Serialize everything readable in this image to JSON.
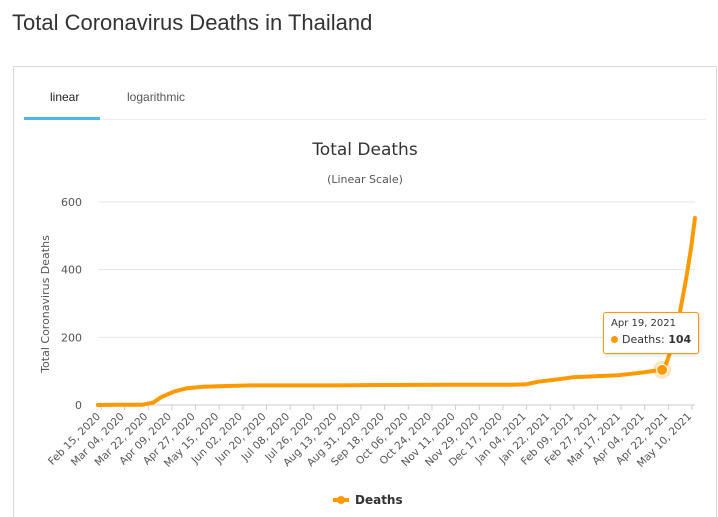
{
  "page": {
    "title": "Total Coronavirus Deaths in Thailand"
  },
  "tabs": [
    {
      "label": "linear",
      "active": true
    },
    {
      "label": "logarithmic",
      "active": false
    }
  ],
  "tooltip": {
    "date": "Apr 19, 2021",
    "series": "Deaths:",
    "value": "104"
  },
  "colors": {
    "series": "#ff9900",
    "tab_underline": "#4db8e8",
    "grid": "#e6e6e6"
  },
  "chart_data": {
    "type": "line",
    "title": "Total Deaths",
    "subtitle": "(Linear Scale)",
    "ylabel": "Total Coronavirus Deaths",
    "xlabel": "",
    "ylim": [
      0,
      600
    ],
    "yticks": [
      0,
      200,
      400,
      600
    ],
    "grid": true,
    "legend_position": "bottom-center",
    "x_tick_labels": [
      "Feb 15, 2020",
      "Mar 04, 2020",
      "Mar 22, 2020",
      "Apr 09, 2020",
      "Apr 27, 2020",
      "May 15, 2020",
      "Jun 02, 2020",
      "Jun 20, 2020",
      "Jul 08, 2020",
      "Jul 26, 2020",
      "Aug 13, 2020",
      "Aug 31, 2020",
      "Sep 18, 2020",
      "Oct 06, 2020",
      "Oct 24, 2020",
      "Nov 11, 2020",
      "Nov 29, 2020",
      "Dec 17, 2020",
      "Jan 04, 2021",
      "Jan 22, 2021",
      "Feb 09, 2021",
      "Feb 27, 2021",
      "Mar 17, 2021",
      "Apr 04, 2021",
      "Apr 22, 2021",
      "May 10, 2021"
    ],
    "series": [
      {
        "name": "Deaths",
        "points": [
          [
            "2020-02-15",
            0
          ],
          [
            "2020-03-01",
            1
          ],
          [
            "2020-03-20",
            1
          ],
          [
            "2020-03-28",
            7
          ],
          [
            "2020-04-03",
            23
          ],
          [
            "2020-04-13",
            40
          ],
          [
            "2020-04-22",
            49
          ],
          [
            "2020-05-05",
            54
          ],
          [
            "2020-05-20",
            56
          ],
          [
            "2020-06-10",
            58
          ],
          [
            "2020-08-15",
            58
          ],
          [
            "2020-09-20",
            59
          ],
          [
            "2020-11-10",
            60
          ],
          [
            "2020-12-25",
            60
          ],
          [
            "2021-01-05",
            61
          ],
          [
            "2021-01-15",
            69
          ],
          [
            "2021-01-30",
            76
          ],
          [
            "2021-02-10",
            82
          ],
          [
            "2021-02-27",
            85
          ],
          [
            "2021-03-17",
            88
          ],
          [
            "2021-04-04",
            96
          ],
          [
            "2021-04-19",
            104
          ],
          [
            "2021-04-22",
            121
          ],
          [
            "2021-04-27",
            178
          ],
          [
            "2021-05-02",
            263
          ],
          [
            "2021-05-07",
            367
          ],
          [
            "2021-05-11",
            464
          ],
          [
            "2021-05-14",
            553
          ]
        ]
      }
    ],
    "highlight": {
      "date": "2021-04-19",
      "value": 104
    }
  }
}
